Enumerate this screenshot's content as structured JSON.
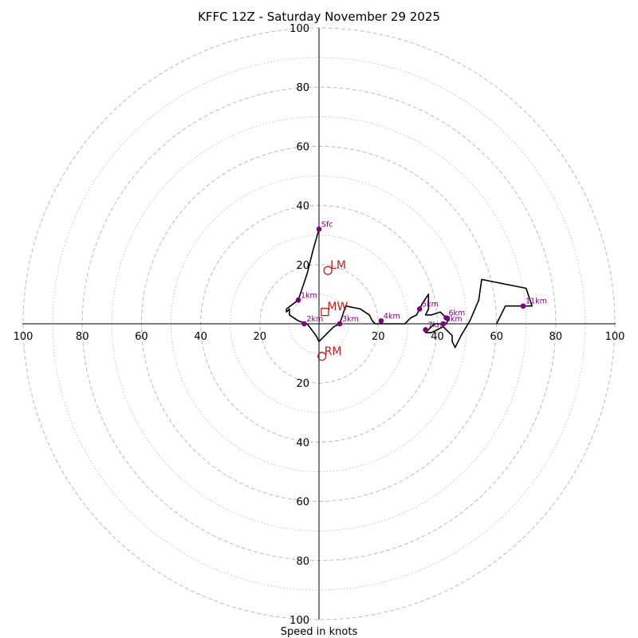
{
  "chart_data": {
    "type": "hodograph",
    "title": "KFFC 12Z - Saturday November 29 2025",
    "xlabel": "Speed in knots",
    "ring_ticks": [
      "20",
      "40",
      "60",
      "80",
      "100"
    ],
    "axis_tick_labels": {
      "left": [
        "100",
        "80",
        "60",
        "40",
        "20"
      ],
      "right": [
        "20",
        "40",
        "60",
        "80",
        "100"
      ],
      "top": [
        "100",
        "80",
        "60",
        "40",
        "20"
      ],
      "bottom": [
        "20",
        "40",
        "60",
        "80",
        "100"
      ]
    },
    "range_max": 100,
    "major_ring_step": 20,
    "minor_ring_step": 10,
    "hodograph_trace_uv": [
      [
        0,
        32
      ],
      [
        -2,
        25
      ],
      [
        -4,
        17
      ],
      [
        -7,
        8
      ],
      [
        -11,
        5
      ],
      [
        -11,
        4
      ],
      [
        -10,
        5
      ],
      [
        -10,
        3
      ],
      [
        -7,
        1
      ],
      [
        -4,
        0
      ],
      [
        -1,
        -4
      ],
      [
        0,
        -6
      ],
      [
        3,
        -3
      ],
      [
        5,
        -1
      ],
      [
        7,
        0
      ],
      [
        9,
        6
      ],
      [
        14,
        5
      ],
      [
        17,
        3
      ],
      [
        18,
        1
      ],
      [
        19,
        0
      ],
      [
        21,
        0
      ],
      [
        25,
        0
      ],
      [
        29,
        0
      ],
      [
        31,
        2
      ],
      [
        33,
        3
      ],
      [
        35,
        7
      ],
      [
        37,
        10
      ],
      [
        37,
        5
      ],
      [
        36,
        3
      ],
      [
        38,
        3
      ],
      [
        41,
        4
      ],
      [
        42,
        3
      ],
      [
        43,
        2
      ],
      [
        44,
        2
      ],
      [
        43,
        0
      ],
      [
        41,
        0
      ],
      [
        39,
        0
      ],
      [
        37,
        -2
      ],
      [
        36,
        -3
      ],
      [
        38,
        -3
      ],
      [
        40,
        -2
      ],
      [
        42,
        -1
      ],
      [
        44,
        -3
      ],
      [
        45,
        -4
      ],
      [
        45,
        -6
      ],
      [
        46,
        -8
      ],
      [
        48,
        -4
      ],
      [
        51,
        1
      ],
      [
        54,
        8
      ],
      [
        55,
        15
      ],
      [
        70,
        12
      ],
      [
        72,
        6
      ],
      [
        69,
        6
      ],
      [
        63,
        6
      ],
      [
        61,
        2
      ],
      [
        60,
        0
      ]
    ],
    "height_markers": [
      {
        "label": "Sfc",
        "u": 0,
        "v": 32
      },
      {
        "label": "1km",
        "u": -7,
        "v": 8
      },
      {
        "label": "2km",
        "u": -5,
        "v": 0
      },
      {
        "label": "3km",
        "u": 7,
        "v": 0
      },
      {
        "label": "4km",
        "u": 21,
        "v": 1
      },
      {
        "label": "5km",
        "u": 34,
        "v": 5
      },
      {
        "label": "6km",
        "u": 43,
        "v": 2
      },
      {
        "label": "8km",
        "u": 42,
        "v": 0
      },
      {
        "label": "7km",
        "u": 36,
        "v": -2
      },
      {
        "label": "11km",
        "u": 69,
        "v": 6
      }
    ],
    "motion_markers": [
      {
        "label": "LM",
        "u": 3,
        "v": 18,
        "shape": "circle"
      },
      {
        "label": "MW",
        "u": 2,
        "v": 4,
        "shape": "square"
      },
      {
        "label": "RM",
        "u": 1,
        "v": -11,
        "shape": "circle"
      }
    ],
    "colors": {
      "trace": "#000000",
      "height_marker": "#800080",
      "motion_marker": "#b22222",
      "grid": "#bbbbbb"
    }
  }
}
